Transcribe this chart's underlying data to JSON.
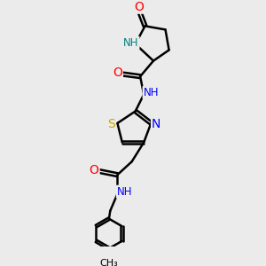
{
  "bg_color": "#ebebeb",
  "line_color": "#000000",
  "bond_width": 1.8,
  "atom_colors": {
    "O": "#ff0000",
    "N": "#0000ff",
    "S": "#ccaa00",
    "NH_teal": "#008080",
    "C": "#000000"
  },
  "font_size_atom": 8.5,
  "fig_size": [
    3.0,
    3.0
  ],
  "dpi": 100
}
